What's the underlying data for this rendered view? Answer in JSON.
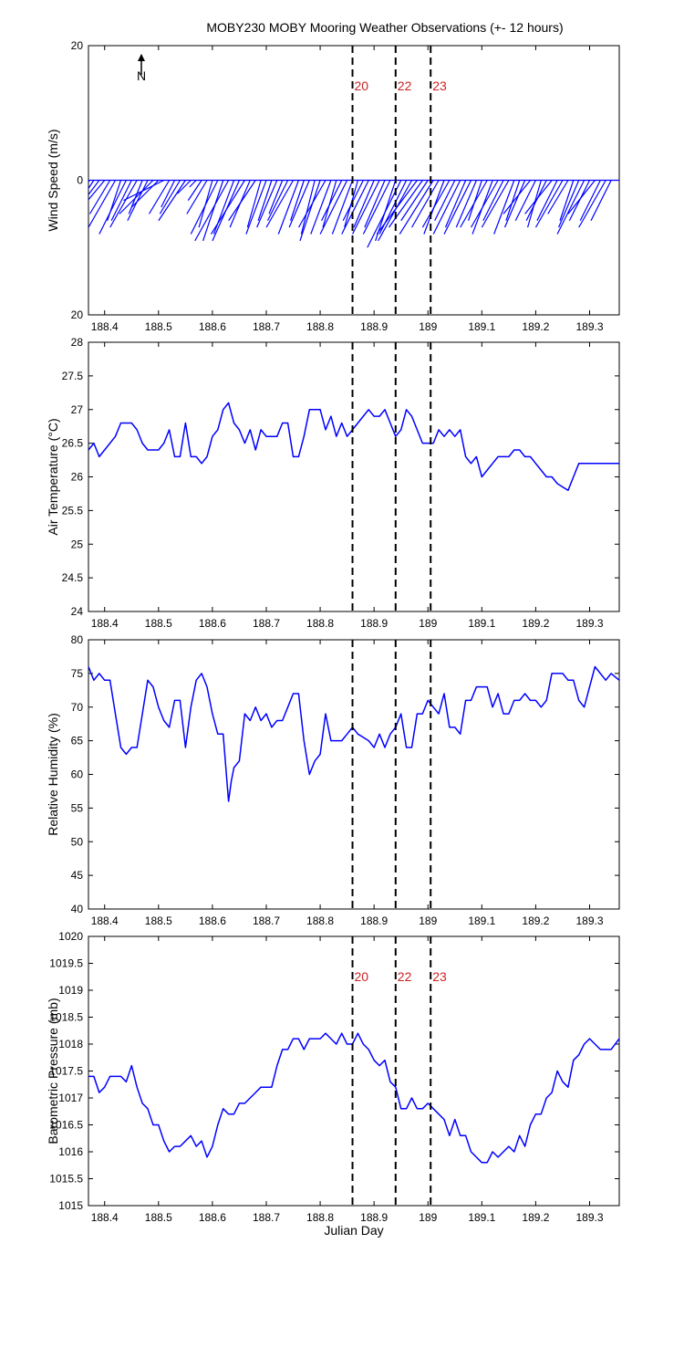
{
  "figure": {
    "title": "MOBY230 MOBY Mooring Weather Observations (+- 12 hours)"
  },
  "chart_data": [
    {
      "type": "line",
      "variant": "wind-stick",
      "ylabel": "Wind Speed (m/s)",
      "xlabel": "",
      "north_label": "N",
      "ylim": [
        -20,
        20
      ],
      "yticks": [
        20,
        0,
        20
      ],
      "xlim": [
        188.37,
        189.355
      ],
      "xticks": [
        "188.4",
        "188.5",
        "188.6",
        "188.7",
        "188.8",
        "188.9",
        "189",
        "189.1",
        "189.2",
        "189.3"
      ],
      "event_lines": [
        {
          "x": 188.86,
          "label": "20"
        },
        {
          "x": 188.94,
          "label": "22"
        },
        {
          "x": 189.005,
          "label": "23"
        }
      ],
      "series_color": "#0000ff",
      "x": [
        188.372,
        188.38,
        188.39,
        188.4,
        188.41,
        188.42,
        188.43,
        188.44,
        188.45,
        188.46,
        188.47,
        188.48,
        188.49,
        188.5,
        188.51,
        188.52,
        188.53,
        188.54,
        188.55,
        188.56,
        188.57,
        188.58,
        188.59,
        188.6,
        188.61,
        188.62,
        188.63,
        188.64,
        188.65,
        188.66,
        188.67,
        188.68,
        188.69,
        188.7,
        188.71,
        188.72,
        188.73,
        188.74,
        188.75,
        188.76,
        188.77,
        188.78,
        188.79,
        188.8,
        188.81,
        188.82,
        188.83,
        188.84,
        188.85,
        188.86,
        188.87,
        188.88,
        188.89,
        188.9,
        188.91,
        188.92,
        188.93,
        188.94,
        188.95,
        188.96,
        188.97,
        188.98,
        188.99,
        189.0,
        189.01,
        189.02,
        189.03,
        189.04,
        189.05,
        189.06,
        189.07,
        189.08,
        189.09,
        189.1,
        189.11,
        189.12,
        189.13,
        189.14,
        189.15,
        189.16,
        189.17,
        189.18,
        189.19,
        189.2,
        189.21,
        189.22,
        189.23,
        189.24,
        189.25,
        189.26,
        189.27,
        189.28,
        189.29,
        189.3,
        189.31,
        189.32,
        189.33,
        189.34
      ],
      "u": [
        -3,
        -4,
        -3,
        -5,
        -3,
        -4,
        -2,
        -4,
        -3,
        -4,
        -2,
        -3,
        -5,
        -4,
        -6,
        -3,
        -2,
        -3,
        -4,
        -2,
        -1,
        -2,
        -3,
        -2,
        -4,
        -3,
        -5,
        -3,
        -4,
        -5,
        -3,
        -4,
        -2,
        -3,
        -2,
        -3,
        -2,
        -3,
        -4,
        -3,
        -2,
        -3,
        -2,
        -3,
        -4,
        -3,
        -2,
        -3,
        -4,
        -3,
        -2,
        -3,
        -4,
        -3,
        -4,
        -3,
        -4,
        -3,
        -5,
        -4,
        -5,
        -6,
        -5,
        -4,
        -5,
        -4,
        -3,
        -4,
        -3,
        -4,
        -3,
        -4,
        -3,
        -2,
        -4,
        -3,
        -4,
        -3,
        -4,
        -3,
        -2,
        -3,
        -4,
        -3,
        -2,
        -3,
        -4,
        -3,
        -4,
        -3,
        -2,
        -3,
        -4,
        -3,
        -4,
        -3,
        -4,
        -3
      ],
      "v": [
        -5,
        -6,
        -4,
        -6,
        -5,
        -7,
        -6,
        -8,
        -6,
        -7,
        -5,
        -6,
        -5,
        -4,
        -3,
        -5,
        -4,
        -5,
        -6,
        -2,
        -1,
        -3,
        -5,
        -7,
        -8,
        -9,
        -9,
        -8,
        -9,
        -8,
        -7,
        -6,
        -7,
        -8,
        -6,
        -7,
        -5,
        -6,
        -7,
        -8,
        -6,
        -7,
        -8,
        -9,
        -7,
        -8,
        -7,
        -6,
        -8,
        -8,
        -7,
        -6,
        -8,
        -7,
        -8,
        -7,
        -8,
        -9,
        -10,
        -8,
        -9,
        -8,
        -7,
        -6,
        -8,
        -7,
        -8,
        -7,
        -6,
        -8,
        -7,
        -8,
        -7,
        -6,
        -7,
        -8,
        -7,
        -6,
        -7,
        -8,
        -6,
        -7,
        -5,
        -6,
        -7,
        -6,
        -5,
        -6,
        -7,
        -5,
        -6,
        -7,
        -8,
        -6,
        -5,
        -6,
        -7,
        -6
      ]
    },
    {
      "type": "line",
      "ylabel": "Air Temperature (°C)",
      "xlabel": "",
      "ylim": [
        24,
        28
      ],
      "yticks": [
        "24",
        "24.5",
        "25",
        "25.5",
        "26",
        "26.5",
        "27",
        "27.5",
        "28"
      ],
      "xlim": [
        188.37,
        189.355
      ],
      "xticks": [
        "188.4",
        "188.5",
        "188.6",
        "188.7",
        "188.8",
        "188.9",
        "189",
        "189.1",
        "189.2",
        "189.3"
      ],
      "event_lines": [
        {
          "x": 188.86,
          "label": ""
        },
        {
          "x": 188.94,
          "label": ""
        },
        {
          "x": 189.005,
          "label": ""
        }
      ],
      "series_color": "#0000ff",
      "x": [
        188.37,
        188.38,
        188.39,
        188.4,
        188.41,
        188.42,
        188.43,
        188.44,
        188.45,
        188.46,
        188.47,
        188.48,
        188.49,
        188.5,
        188.51,
        188.52,
        188.53,
        188.54,
        188.55,
        188.56,
        188.57,
        188.58,
        188.59,
        188.6,
        188.61,
        188.62,
        188.63,
        188.64,
        188.65,
        188.66,
        188.67,
        188.68,
        188.69,
        188.7,
        188.71,
        188.72,
        188.73,
        188.74,
        188.75,
        188.76,
        188.77,
        188.78,
        188.79,
        188.8,
        188.81,
        188.82,
        188.83,
        188.84,
        188.85,
        188.86,
        188.87,
        188.88,
        188.89,
        188.9,
        188.91,
        188.92,
        188.93,
        188.94,
        188.95,
        188.96,
        188.97,
        188.98,
        188.99,
        189.0,
        189.01,
        189.02,
        189.03,
        189.04,
        189.05,
        189.06,
        189.07,
        189.08,
        189.09,
        189.1,
        189.11,
        189.12,
        189.13,
        189.14,
        189.15,
        189.16,
        189.17,
        189.18,
        189.19,
        189.2,
        189.21,
        189.22,
        189.23,
        189.24,
        189.25,
        189.26,
        189.27,
        189.28,
        189.29,
        189.3,
        189.31,
        189.32,
        189.33,
        189.34,
        189.355
      ],
      "y": [
        26.4,
        26.5,
        26.3,
        26.4,
        26.5,
        26.6,
        26.8,
        26.8,
        26.8,
        26.7,
        26.5,
        26.4,
        26.4,
        26.4,
        26.5,
        26.7,
        26.3,
        26.3,
        26.8,
        26.3,
        26.3,
        26.2,
        26.3,
        26.6,
        26.7,
        27.0,
        27.1,
        26.8,
        26.7,
        26.5,
        26.7,
        26.4,
        26.7,
        26.6,
        26.6,
        26.6,
        26.8,
        26.8,
        26.3,
        26.3,
        26.6,
        27.0,
        27.0,
        27.0,
        26.7,
        26.9,
        26.6,
        26.8,
        26.6,
        26.7,
        26.8,
        26.9,
        27.0,
        26.9,
        26.9,
        27.0,
        26.8,
        26.6,
        26.7,
        27.0,
        26.9,
        26.7,
        26.5,
        26.5,
        26.5,
        26.7,
        26.6,
        26.7,
        26.6,
        26.7,
        26.3,
        26.2,
        26.3,
        26.0,
        26.1,
        26.2,
        26.3,
        26.3,
        26.3,
        26.4,
        26.4,
        26.3,
        26.3,
        26.2,
        26.1,
        26.0,
        26.0,
        25.9,
        25.85,
        25.8,
        26.0,
        26.2,
        26.2,
        26.2,
        26.2,
        26.2,
        26.2,
        26.2,
        26.2
      ]
    },
    {
      "type": "line",
      "ylabel": "Relative Humidity (%)",
      "xlabel": "",
      "ylim": [
        40,
        80
      ],
      "yticks": [
        "40",
        "45",
        "50",
        "55",
        "60",
        "65",
        "70",
        "75",
        "80"
      ],
      "xlim": [
        188.37,
        189.355
      ],
      "xticks": [
        "188.4",
        "188.5",
        "188.6",
        "188.7",
        "188.8",
        "188.9",
        "189",
        "189.1",
        "189.2",
        "189.3"
      ],
      "event_lines": [
        {
          "x": 188.86,
          "label": ""
        },
        {
          "x": 188.94,
          "label": ""
        },
        {
          "x": 189.005,
          "label": ""
        }
      ],
      "series_color": "#0000ff",
      "x": [
        188.37,
        188.38,
        188.39,
        188.4,
        188.41,
        188.42,
        188.43,
        188.44,
        188.45,
        188.46,
        188.47,
        188.48,
        188.49,
        188.5,
        188.51,
        188.52,
        188.53,
        188.54,
        188.55,
        188.56,
        188.57,
        188.58,
        188.59,
        188.6,
        188.61,
        188.62,
        188.63,
        188.635,
        188.64,
        188.65,
        188.66,
        188.67,
        188.68,
        188.69,
        188.7,
        188.71,
        188.72,
        188.73,
        188.74,
        188.75,
        188.76,
        188.77,
        188.78,
        188.79,
        188.8,
        188.81,
        188.82,
        188.83,
        188.84,
        188.85,
        188.86,
        188.87,
        188.88,
        188.89,
        188.9,
        188.91,
        188.92,
        188.93,
        188.94,
        188.95,
        188.96,
        188.97,
        188.98,
        188.99,
        189.0,
        189.01,
        189.02,
        189.03,
        189.04,
        189.05,
        189.06,
        189.07,
        189.08,
        189.09,
        189.1,
        189.11,
        189.12,
        189.13,
        189.14,
        189.15,
        189.16,
        189.17,
        189.18,
        189.19,
        189.2,
        189.21,
        189.22,
        189.23,
        189.24,
        189.25,
        189.26,
        189.27,
        189.28,
        189.29,
        189.3,
        189.31,
        189.32,
        189.33,
        189.34,
        189.355
      ],
      "y": [
        76,
        74,
        75,
        74,
        74,
        69,
        64,
        63,
        64,
        64,
        69,
        74,
        73,
        70,
        68,
        67,
        71,
        71,
        64,
        70,
        74,
        75,
        73,
        69,
        66,
        66,
        56,
        59,
        61,
        62,
        69,
        68,
        70,
        68,
        69,
        67,
        68,
        68,
        70,
        72,
        72,
        65,
        60,
        62,
        63,
        69,
        65,
        65,
        65,
        66,
        67,
        66,
        65.5,
        65,
        64,
        66,
        64,
        66,
        67,
        69,
        64,
        64,
        69,
        69,
        71,
        70,
        69,
        72,
        67,
        67,
        66,
        71,
        71,
        73,
        73,
        73,
        70,
        72,
        69,
        69,
        71,
        71,
        72,
        71,
        71,
        70,
        71,
        75,
        75,
        75,
        74,
        74,
        71,
        70,
        73,
        76,
        75,
        74,
        75,
        74
      ]
    },
    {
      "type": "line",
      "ylabel": "Barometric Pressure (mb)",
      "xlabel": "Julian Day",
      "ylim": [
        1015,
        1020
      ],
      "yticks": [
        "1015",
        "1015.5",
        "1016",
        "1016.5",
        "1017",
        "1017.5",
        "1018",
        "1018.5",
        "1019",
        "1019.5",
        "1020"
      ],
      "xlim": [
        188.37,
        189.355
      ],
      "xticks": [
        "188.4",
        "188.5",
        "188.6",
        "188.7",
        "188.8",
        "188.9",
        "189",
        "189.1",
        "189.2",
        "189.3"
      ],
      "event_lines": [
        {
          "x": 188.86,
          "label": "20"
        },
        {
          "x": 188.94,
          "label": "22"
        },
        {
          "x": 189.005,
          "label": "23"
        }
      ],
      "series_color": "#0000ff",
      "x": [
        188.37,
        188.38,
        188.39,
        188.4,
        188.41,
        188.42,
        188.43,
        188.44,
        188.45,
        188.46,
        188.47,
        188.48,
        188.49,
        188.5,
        188.51,
        188.52,
        188.53,
        188.54,
        188.55,
        188.56,
        188.57,
        188.58,
        188.59,
        188.6,
        188.61,
        188.62,
        188.63,
        188.64,
        188.65,
        188.66,
        188.67,
        188.68,
        188.69,
        188.7,
        188.71,
        188.72,
        188.73,
        188.74,
        188.75,
        188.76,
        188.77,
        188.78,
        188.79,
        188.8,
        188.81,
        188.82,
        188.83,
        188.84,
        188.85,
        188.86,
        188.87,
        188.88,
        188.89,
        188.9,
        188.91,
        188.92,
        188.93,
        188.94,
        188.95,
        188.96,
        188.97,
        188.98,
        188.99,
        189.0,
        189.01,
        189.02,
        189.03,
        189.04,
        189.05,
        189.06,
        189.07,
        189.08,
        189.09,
        189.1,
        189.11,
        189.12,
        189.13,
        189.14,
        189.15,
        189.16,
        189.17,
        189.18,
        189.19,
        189.2,
        189.21,
        189.22,
        189.23,
        189.24,
        189.25,
        189.26,
        189.27,
        189.28,
        189.29,
        189.3,
        189.31,
        189.32,
        189.33,
        189.34,
        189.355
      ],
      "y": [
        1017.4,
        1017.4,
        1017.1,
        1017.2,
        1017.4,
        1017.4,
        1017.4,
        1017.3,
        1017.6,
        1017.2,
        1016.9,
        1016.8,
        1016.5,
        1016.5,
        1016.2,
        1016.0,
        1016.1,
        1016.1,
        1016.2,
        1016.3,
        1016.1,
        1016.2,
        1015.9,
        1016.1,
        1016.5,
        1016.8,
        1016.7,
        1016.7,
        1016.9,
        1016.9,
        1017.0,
        1017.1,
        1017.2,
        1017.2,
        1017.2,
        1017.6,
        1017.9,
        1017.9,
        1018.1,
        1018.1,
        1017.9,
        1018.1,
        1018.1,
        1018.1,
        1018.2,
        1018.1,
        1018.0,
        1018.2,
        1018.0,
        1018.0,
        1018.2,
        1018.0,
        1017.9,
        1017.7,
        1017.6,
        1017.7,
        1017.3,
        1017.2,
        1016.8,
        1016.8,
        1017.0,
        1016.8,
        1016.8,
        1016.9,
        1016.8,
        1016.7,
        1016.6,
        1016.3,
        1016.6,
        1016.3,
        1016.3,
        1016.0,
        1015.9,
        1015.8,
        1015.8,
        1016.0,
        1015.9,
        1016.0,
        1016.1,
        1016.0,
        1016.3,
        1016.1,
        1016.5,
        1016.7,
        1016.7,
        1017.0,
        1017.1,
        1017.5,
        1017.3,
        1017.2,
        1017.7,
        1017.8,
        1018.0,
        1018.1,
        1018.0,
        1017.9,
        1017.9,
        1017.9,
        1018.1
      ]
    }
  ]
}
